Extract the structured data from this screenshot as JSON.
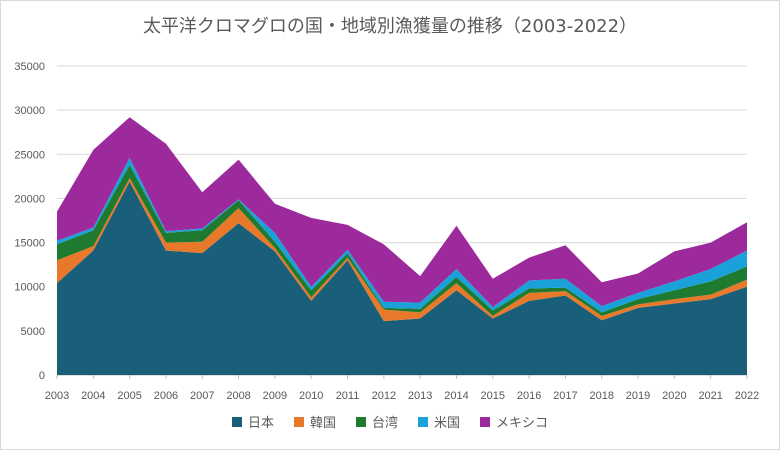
{
  "chart_data": {
    "type": "area",
    "stacked": true,
    "title": "太平洋クロマグロの国・地域別漁獲量の推移（2003-2022）",
    "xlabel": "",
    "ylabel": "",
    "ylim": [
      0,
      35000
    ],
    "yticks": [
      0,
      5000,
      10000,
      15000,
      20000,
      25000,
      30000,
      35000
    ],
    "grid": true,
    "legend_position": "bottom",
    "categories": [
      "2003",
      "2004",
      "2005",
      "2006",
      "2007",
      "2008",
      "2009",
      "2010",
      "2011",
      "2012",
      "2013",
      "2014",
      "2015",
      "2016",
      "2017",
      "2018",
      "2019",
      "2020",
      "2021",
      "2022"
    ],
    "series": [
      {
        "name": "日本",
        "color": "#1a5f7a",
        "values": [
          10400,
          14100,
          21900,
          14100,
          13800,
          17200,
          14000,
          8400,
          13000,
          6100,
          6400,
          9600,
          6400,
          8400,
          9000,
          6200,
          7600,
          8100,
          8600,
          10000
        ]
      },
      {
        "name": "韓国",
        "color": "#e8782a",
        "values": [
          2600,
          500,
          400,
          900,
          1300,
          1700,
          400,
          400,
          300,
          1300,
          700,
          800,
          300,
          900,
          500,
          500,
          400,
          500,
          500,
          800
        ]
      },
      {
        "name": "台湾",
        "color": "#1e7a2e",
        "values": [
          1800,
          1800,
          1500,
          1100,
          1300,
          900,
          700,
          800,
          500,
          200,
          400,
          700,
          600,
          500,
          400,
          400,
          600,
          1000,
          1500,
          1500
        ]
      },
      {
        "name": "米国",
        "color": "#1ba1d9",
        "values": [
          400,
          300,
          800,
          200,
          200,
          100,
          1000,
          400,
          400,
          700,
          700,
          900,
          400,
          900,
          1000,
          700,
          700,
          1000,
          1400,
          1800
        ]
      },
      {
        "name": "メキシコ",
        "color": "#9c2a9c",
        "values": [
          3300,
          8800,
          4600,
          9900,
          4100,
          4500,
          3300,
          7800,
          2800,
          6500,
          3000,
          4900,
          3200,
          2600,
          3800,
          2700,
          2200,
          3400,
          3000,
          3200
        ]
      }
    ]
  }
}
